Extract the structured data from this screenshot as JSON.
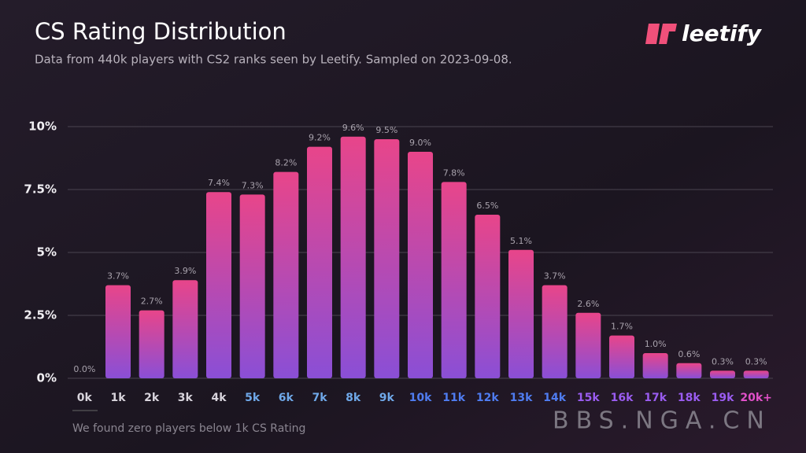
{
  "chart_data": {
    "type": "bar",
    "title": "CS Rating Distribution",
    "subtitle": "Data from 440k players with CS2 ranks seen by Leetify. Sampled on 2023-09-08.",
    "categories": [
      "0k",
      "1k",
      "2k",
      "3k",
      "4k",
      "5k",
      "6k",
      "7k",
      "8k",
      "9k",
      "10k",
      "11k",
      "12k",
      "13k",
      "14k",
      "15k",
      "16k",
      "17k",
      "18k",
      "19k",
      "20k+"
    ],
    "category_colors": [
      "#d8d4dc",
      "#d8d4dc",
      "#d8d4dc",
      "#d8d4dc",
      "#d8d4dc",
      "#6fa8e8",
      "#6fa8e8",
      "#6fa8e8",
      "#6fa8e8",
      "#6fa8e8",
      "#4f7cf0",
      "#4f7cf0",
      "#4f7cf0",
      "#4f7cf0",
      "#4f7cf0",
      "#9a5cf0",
      "#9a5cf0",
      "#9a5cf0",
      "#9a5cf0",
      "#9a5cf0",
      "#e050c8"
    ],
    "values": [
      0.0,
      3.7,
      2.7,
      3.9,
      7.4,
      7.3,
      8.2,
      9.2,
      9.6,
      9.5,
      9.0,
      7.8,
      6.5,
      5.1,
      3.7,
      2.6,
      1.7,
      1.0,
      0.6,
      0.3,
      0.3
    ],
    "value_labels": [
      "0.0%",
      "3.7%",
      "2.7%",
      "3.9%",
      "7.4%",
      "7.3%",
      "8.2%",
      "9.2%",
      "9.6%",
      "9.5%",
      "9.0%",
      "7.8%",
      "6.5%",
      "5.1%",
      "3.7%",
      "2.6%",
      "1.7%",
      "1.0%",
      "0.6%",
      "0.3%",
      "0.3%"
    ],
    "color": [
      "#e8458a",
      "#8a4fd6"
    ],
    "ylim": [
      0,
      10
    ],
    "yticks": [
      {
        "value": 0,
        "label": "0%"
      },
      {
        "value": 2.5,
        "label": "2.5%"
      },
      {
        "value": 5,
        "label": "5%"
      },
      {
        "value": 7.5,
        "label": "7.5%"
      },
      {
        "value": 10,
        "label": "10%"
      }
    ],
    "grid": true,
    "annotation": "We found zero players below 1k CS Rating"
  },
  "logo": "leetify",
  "watermark": "BBS.NGA.CN"
}
